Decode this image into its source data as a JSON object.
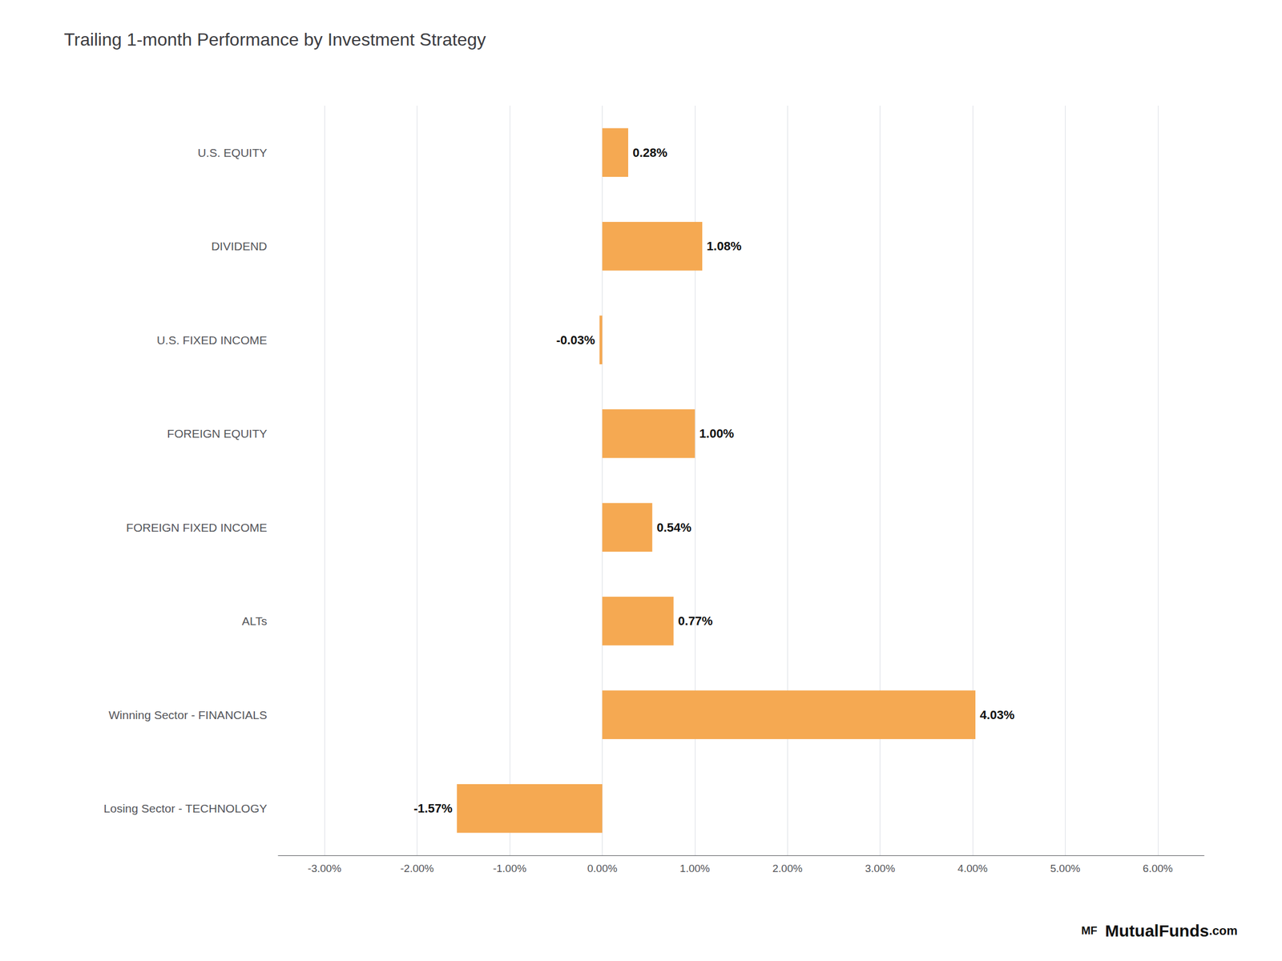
{
  "chart_data": {
    "type": "bar",
    "orientation": "horizontal",
    "title": "Trailing 1-month Performance by Investment Strategy",
    "categories": [
      "Losing Sector - TECHNOLOGY",
      "Winning Sector - FINANCIALS",
      "ALTs",
      "FOREIGN FIXED INCOME",
      "FOREIGN EQUITY",
      "U.S. FIXED INCOME",
      "DIVIDEND",
      "U.S. EQUITY"
    ],
    "values": [
      -1.57,
      4.03,
      0.77,
      0.54,
      1.0,
      -0.03,
      1.08,
      0.28
    ],
    "value_labels": [
      "-1.57%",
      "4.03%",
      "0.77%",
      "0.54%",
      "1.00%",
      "-0.03%",
      "1.08%",
      "0.28%"
    ],
    "data_labels": true,
    "color": "#F5A952",
    "xlim": [
      -3.5,
      6.5
    ],
    "xticks": [
      {
        "value": -3.0,
        "label": "-3.00%"
      },
      {
        "value": -2.0,
        "label": "-2.00%"
      },
      {
        "value": -1.0,
        "label": "-1.00%"
      },
      {
        "value": 0.0,
        "label": "0.00%"
      },
      {
        "value": 1.0,
        "label": "1.00%"
      },
      {
        "value": 2.0,
        "label": "2.00%"
      },
      {
        "value": 3.0,
        "label": "3.00%"
      },
      {
        "value": 4.0,
        "label": "4.00%"
      },
      {
        "value": 5.0,
        "label": "5.00%"
      },
      {
        "value": 6.0,
        "label": "6.00%"
      }
    ],
    "grid": true,
    "annotations": [
      "MF",
      "MutualFunds",
      ".com"
    ]
  }
}
